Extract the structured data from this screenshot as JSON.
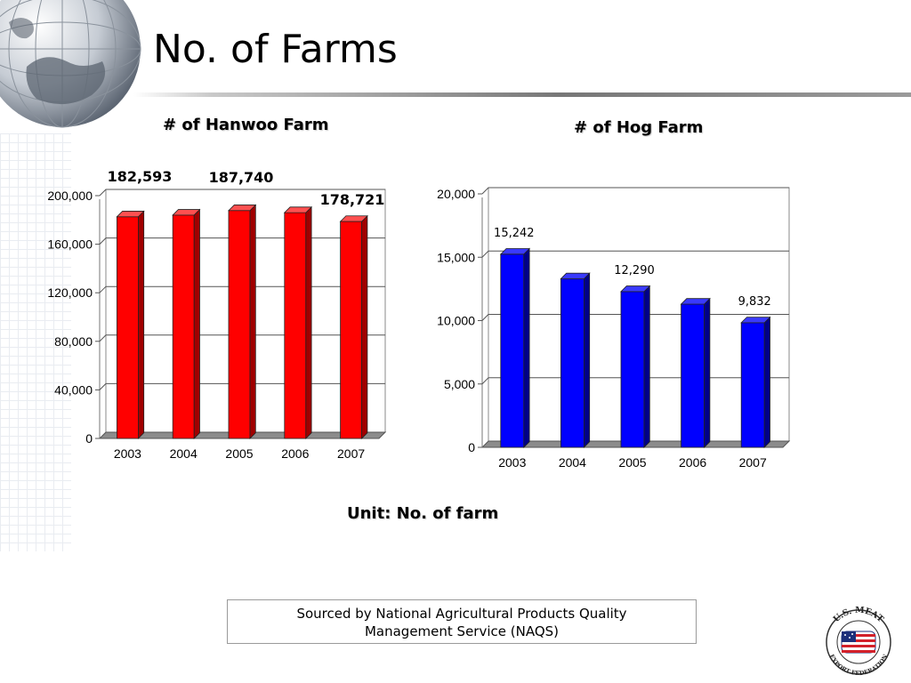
{
  "slide": {
    "title": "No. of Farms",
    "unit_note": "Unit: No. of farm",
    "source_line1": "Sourced by National Agricultural Products Quality",
    "source_line2": "Management Service (NAQS)",
    "logo_top_text": "U.S. MEAT",
    "logo_bottom_text": "EXPORT FEDERATION"
  },
  "chart_data": [
    {
      "type": "bar",
      "title": "# of Hanwoo Farm",
      "categories": [
        "2003",
        "2004",
        "2005",
        "2006",
        "2007"
      ],
      "values": [
        182593,
        184000,
        187740,
        186000,
        178721
      ],
      "ylim": [
        0,
        200000
      ],
      "yticks": [
        "0",
        "40,000",
        "80,000",
        "120,000",
        "160,000",
        "200,000"
      ],
      "data_labels": [
        {
          "index": 0,
          "text": "182,593"
        },
        {
          "index": 2,
          "text": "187,740"
        },
        {
          "index": 4,
          "text": "178,721"
        }
      ],
      "grid": true,
      "color": "#ff0000",
      "side_color": "#a00000",
      "top_color": "#ff5050"
    },
    {
      "type": "bar",
      "title": "# of Hog Farm",
      "categories": [
        "2003",
        "2004",
        "2005",
        "2006",
        "2007"
      ],
      "values": [
        15242,
        13300,
        12290,
        11300,
        9832
      ],
      "ylim": [
        0,
        20000
      ],
      "yticks": [
        "0",
        "5,000",
        "10,000",
        "15,000",
        "20,000"
      ],
      "data_labels": [
        {
          "index": 0,
          "text": "15,242"
        },
        {
          "index": 2,
          "text": "12,290"
        },
        {
          "index": 4,
          "text": "9,832"
        }
      ],
      "grid": true,
      "color": "#0000ff",
      "side_color": "#000088",
      "top_color": "#3a3aff"
    }
  ]
}
